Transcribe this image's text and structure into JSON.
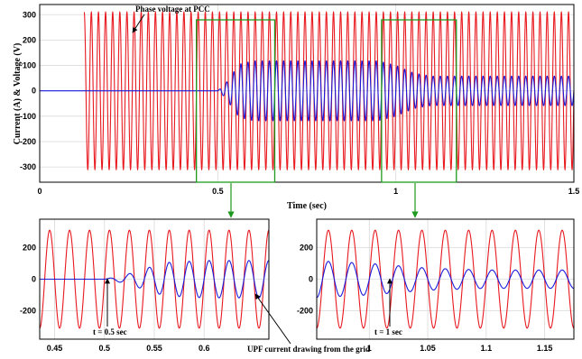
{
  "chart_data": [
    {
      "type": "line",
      "xlabel": "Time (sec)",
      "ylabel": "Current (A) & Voltage (V)",
      "xlim": [
        0,
        1.5
      ],
      "ylim": [
        -360,
        340
      ],
      "xticks": [
        0,
        0.5,
        1,
        1.5
      ],
      "xtick_labels": [
        "0",
        "0.5",
        "1",
        "1.5"
      ],
      "yticks": [
        300,
        200,
        100,
        0,
        -100,
        -200,
        -300
      ],
      "grid": true,
      "series": [
        {
          "name": "Phase voltage at PCC",
          "color": "#e8191f",
          "amplitude": 310,
          "frequency_hz": 50,
          "start_time": 0.125
        },
        {
          "name": "UPF current drawing from the grid",
          "color": "#1a1adb",
          "envelope": [
            [
              0,
              0
            ],
            [
              0.5,
              0
            ],
            [
              0.52,
              25
            ],
            [
              0.56,
              105
            ],
            [
              0.6,
              118
            ],
            [
              0.95,
              118
            ],
            [
              1.0,
              100
            ],
            [
              1.05,
              70
            ],
            [
              1.1,
              58
            ],
            [
              1.5,
              58
            ]
          ]
        }
      ],
      "annotations": [
        {
          "text": "Phase voltage at PCC"
        }
      ],
      "zoom_windows": [
        [
          0.44,
          0.66
        ],
        [
          0.96,
          1.17
        ]
      ]
    },
    {
      "type": "line",
      "xlim": [
        0.435,
        0.665
      ],
      "ylim": [
        -380,
        380
      ],
      "xticks": [
        0.45,
        0.5,
        0.55,
        0.6
      ],
      "xtick_labels": [
        "0.45",
        "0.5",
        "0.55",
        "0.6"
      ],
      "yticks": [
        200,
        0,
        -200
      ],
      "grid": true,
      "annotations": [
        {
          "text": "t = 0.5 sec"
        }
      ]
    },
    {
      "type": "line",
      "xlim": [
        0.955,
        1.175
      ],
      "ylim": [
        -380,
        380
      ],
      "xticks": [
        1,
        1.05,
        1.1,
        1.15
      ],
      "xtick_labels": [
        "1",
        "1.05",
        "1.1",
        "1.15"
      ],
      "yticks": [
        200,
        0,
        -200
      ],
      "grid": true,
      "annotations": [
        {
          "text": "t = 1 sec"
        },
        {
          "text": "UPF current drawing from the grid"
        }
      ]
    }
  ]
}
